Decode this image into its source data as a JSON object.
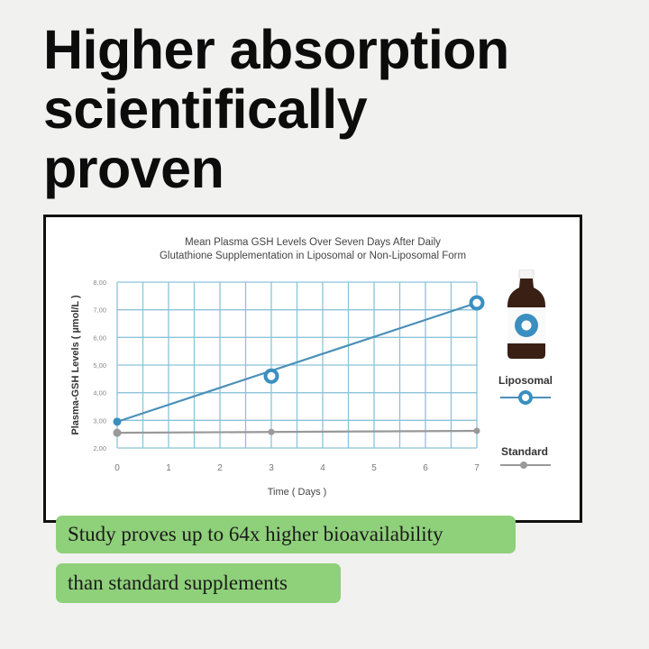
{
  "headline": [
    "Higher absorption",
    "scientifically",
    "proven"
  ],
  "chart_data": {
    "type": "line",
    "title": [
      "Mean Plasma GSH Levels Over Seven Days After Daily",
      "Glutathione Supplementation in Liposomal or Non-Liposomal Form"
    ],
    "xlabel": "Time ( Days )",
    "ylabel": "Plasma-GSH Levels ( µmol/L )",
    "x_ticks": [
      "0",
      "1",
      "2",
      "3",
      "4",
      "5",
      "6",
      "7"
    ],
    "y_ticks": [
      "2,00",
      "3,00",
      "4,00",
      "5,00",
      "6,00",
      "7,00",
      "8,00"
    ],
    "xlim": [
      0,
      7
    ],
    "ylim": [
      2,
      8
    ],
    "grid": true,
    "legend_position": "right",
    "series": [
      {
        "name": "Liposomal",
        "color": "#4a90b8",
        "x": [
          0,
          3,
          7
        ],
        "y": [
          2.95,
          4.6,
          7.25
        ]
      },
      {
        "name": "Standard",
        "color": "#999999",
        "x": [
          0,
          3,
          7
        ],
        "y": [
          2.55,
          2.58,
          2.62
        ]
      }
    ]
  },
  "callouts": [
    "Study proves up to 64x higher bioavailability",
    "than standard supplements"
  ]
}
